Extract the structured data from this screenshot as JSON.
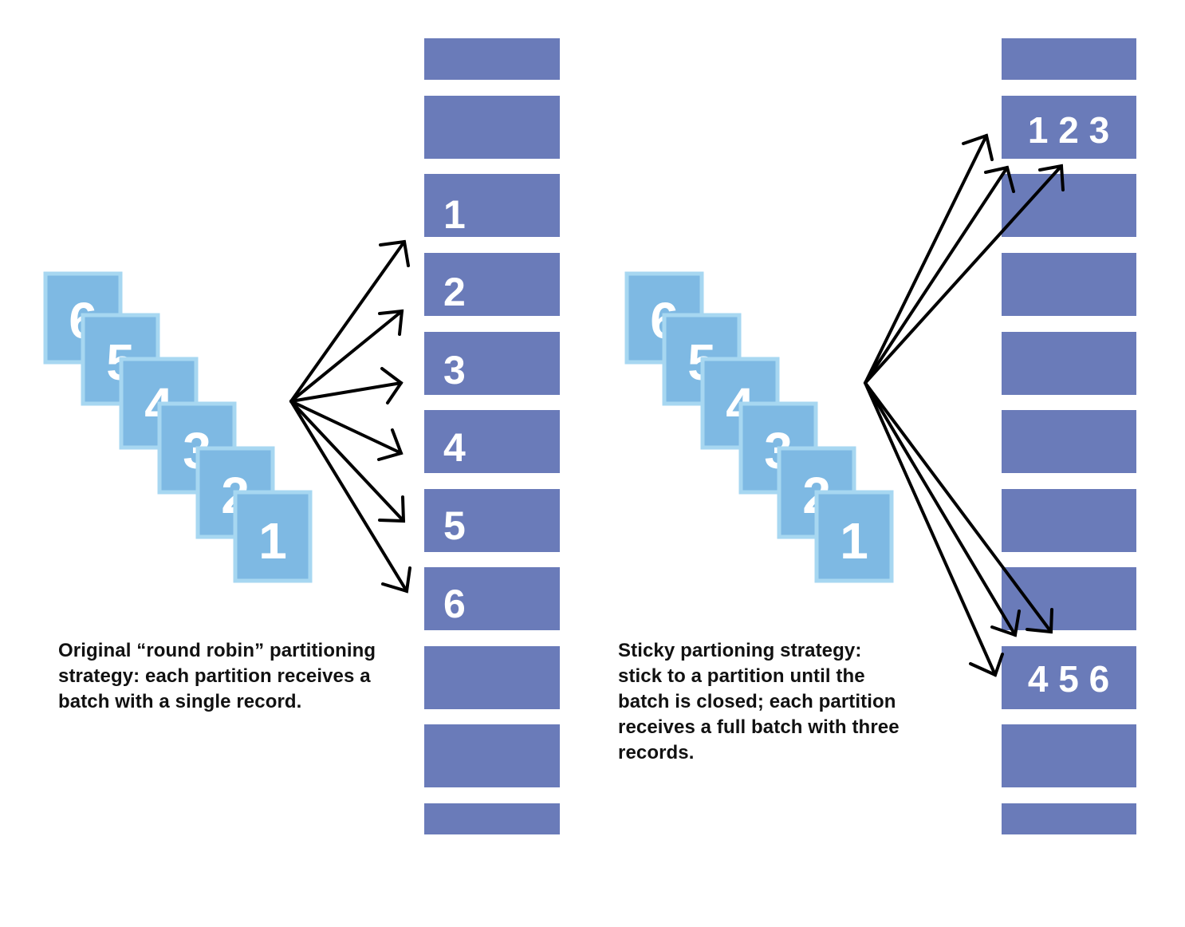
{
  "colors": {
    "partition": "#6a7bb9",
    "record_fill": "#7eb9e3",
    "record_border": "#a7d7f1",
    "arrow": "#000000",
    "text": "#111111",
    "label": "#ffffff"
  },
  "diagrams": [
    {
      "id": "round-robin",
      "records": [
        "6",
        "5",
        "4",
        "3",
        "2",
        "1"
      ],
      "partitions": [
        "",
        "",
        "1",
        "2",
        "3",
        "4",
        "5",
        "6",
        "",
        "",
        ""
      ],
      "caption": [
        "Original “round robin” partitioning",
        "strategy: each partition receives a",
        "batch with a single record."
      ]
    },
    {
      "id": "sticky",
      "records": [
        "6",
        "5",
        "4",
        "3",
        "2",
        "1"
      ],
      "partitions": [
        "",
        "1 2 3",
        "",
        "",
        "",
        "",
        "",
        "",
        "4 5 6",
        "",
        ""
      ],
      "caption": [
        "Sticky partioning strategy:",
        "stick to a partition until the",
        "batch is closed; each partition",
        "receives a full batch with three",
        "records."
      ]
    }
  ]
}
